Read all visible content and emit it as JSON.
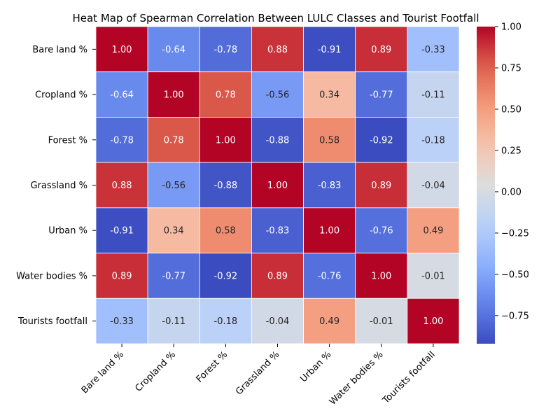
{
  "chart_data": {
    "type": "heatmap",
    "title": "Heat Map of Spearman Correlation Between LULC Classes and Tourist Footfall",
    "xlabel": "",
    "ylabel": "",
    "row_labels": [
      "Bare land %",
      "Cropland %",
      "Forest %",
      "Grassland %",
      "Urban %",
      "Water bodies %",
      "Tourists footfall"
    ],
    "column_labels": [
      "Bare land %",
      "Cropland %",
      "Forest %",
      "Grassland %",
      "Urban %",
      "Water bodies %",
      "Tourists footfall"
    ],
    "values": [
      [
        1.0,
        -0.64,
        -0.78,
        0.88,
        -0.91,
        0.89,
        -0.33
      ],
      [
        -0.64,
        1.0,
        0.78,
        -0.56,
        0.34,
        -0.77,
        -0.11
      ],
      [
        -0.78,
        0.78,
        1.0,
        -0.88,
        0.58,
        -0.92,
        -0.18
      ],
      [
        0.88,
        -0.56,
        -0.88,
        1.0,
        -0.83,
        0.89,
        -0.04
      ],
      [
        -0.91,
        0.34,
        0.58,
        -0.83,
        1.0,
        -0.76,
        0.49
      ],
      [
        0.89,
        -0.77,
        -0.92,
        0.89,
        -0.76,
        1.0,
        -0.01
      ],
      [
        -0.33,
        -0.11,
        -0.18,
        -0.04,
        0.49,
        -0.01,
        1.0
      ]
    ],
    "value_format": "2 decimals",
    "colormap": "coolwarm",
    "color_range": [
      -0.92,
      1.0
    ],
    "colorbar": {
      "ticks": [
        1.0,
        0.75,
        0.5,
        0.25,
        0.0,
        -0.25,
        -0.5,
        -0.75
      ],
      "tick_labels": [
        "1.00",
        "0.75",
        "0.50",
        "0.25",
        "0.00",
        "−0.25",
        "−0.50",
        "−0.75"
      ]
    },
    "x_tick_rotation": "45°",
    "cell_border_color": "#ffffff",
    "grid": false,
    "legend": "colorbar at right"
  }
}
